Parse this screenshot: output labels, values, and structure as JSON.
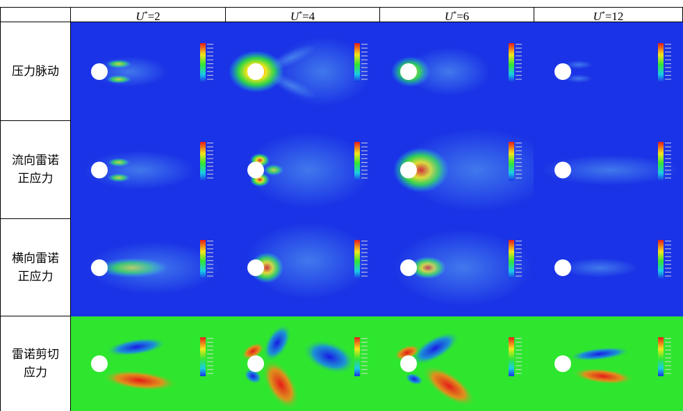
{
  "columns": [
    {
      "var": "U",
      "sup": "*",
      "rest": "=2"
    },
    {
      "var": "U",
      "sup": "*",
      "rest": "=4"
    },
    {
      "var": "U",
      "sup": "*",
      "rest": "=6"
    },
    {
      "var": "U",
      "sup": "*",
      "rest": "=12"
    }
  ],
  "rows": [
    {
      "label_line1": "压力脉动",
      "label_line2": "",
      "field": "pressure-fluctuation",
      "background": "#1a33e6"
    },
    {
      "label_line1": "流向雷诺",
      "label_line2": "正应力",
      "field": "streamwise-reynolds-normal-stress",
      "background": "#1a33e6"
    },
    {
      "label_line1": "横向雷诺",
      "label_line2": "正应力",
      "field": "transverse-reynolds-normal-stress",
      "background": "#1a33e6"
    },
    {
      "label_line1": "雷诺剪切",
      "label_line2": "应力",
      "field": "reynolds-shear-stress",
      "background": "#2ee62e"
    }
  ],
  "colors": {
    "blue": "#1a33e6",
    "green": "#33e633",
    "red": "#e61a1a",
    "yellow": "#f5e61a",
    "cyan": "#1acce6",
    "cylinder": "#ffffff"
  }
}
